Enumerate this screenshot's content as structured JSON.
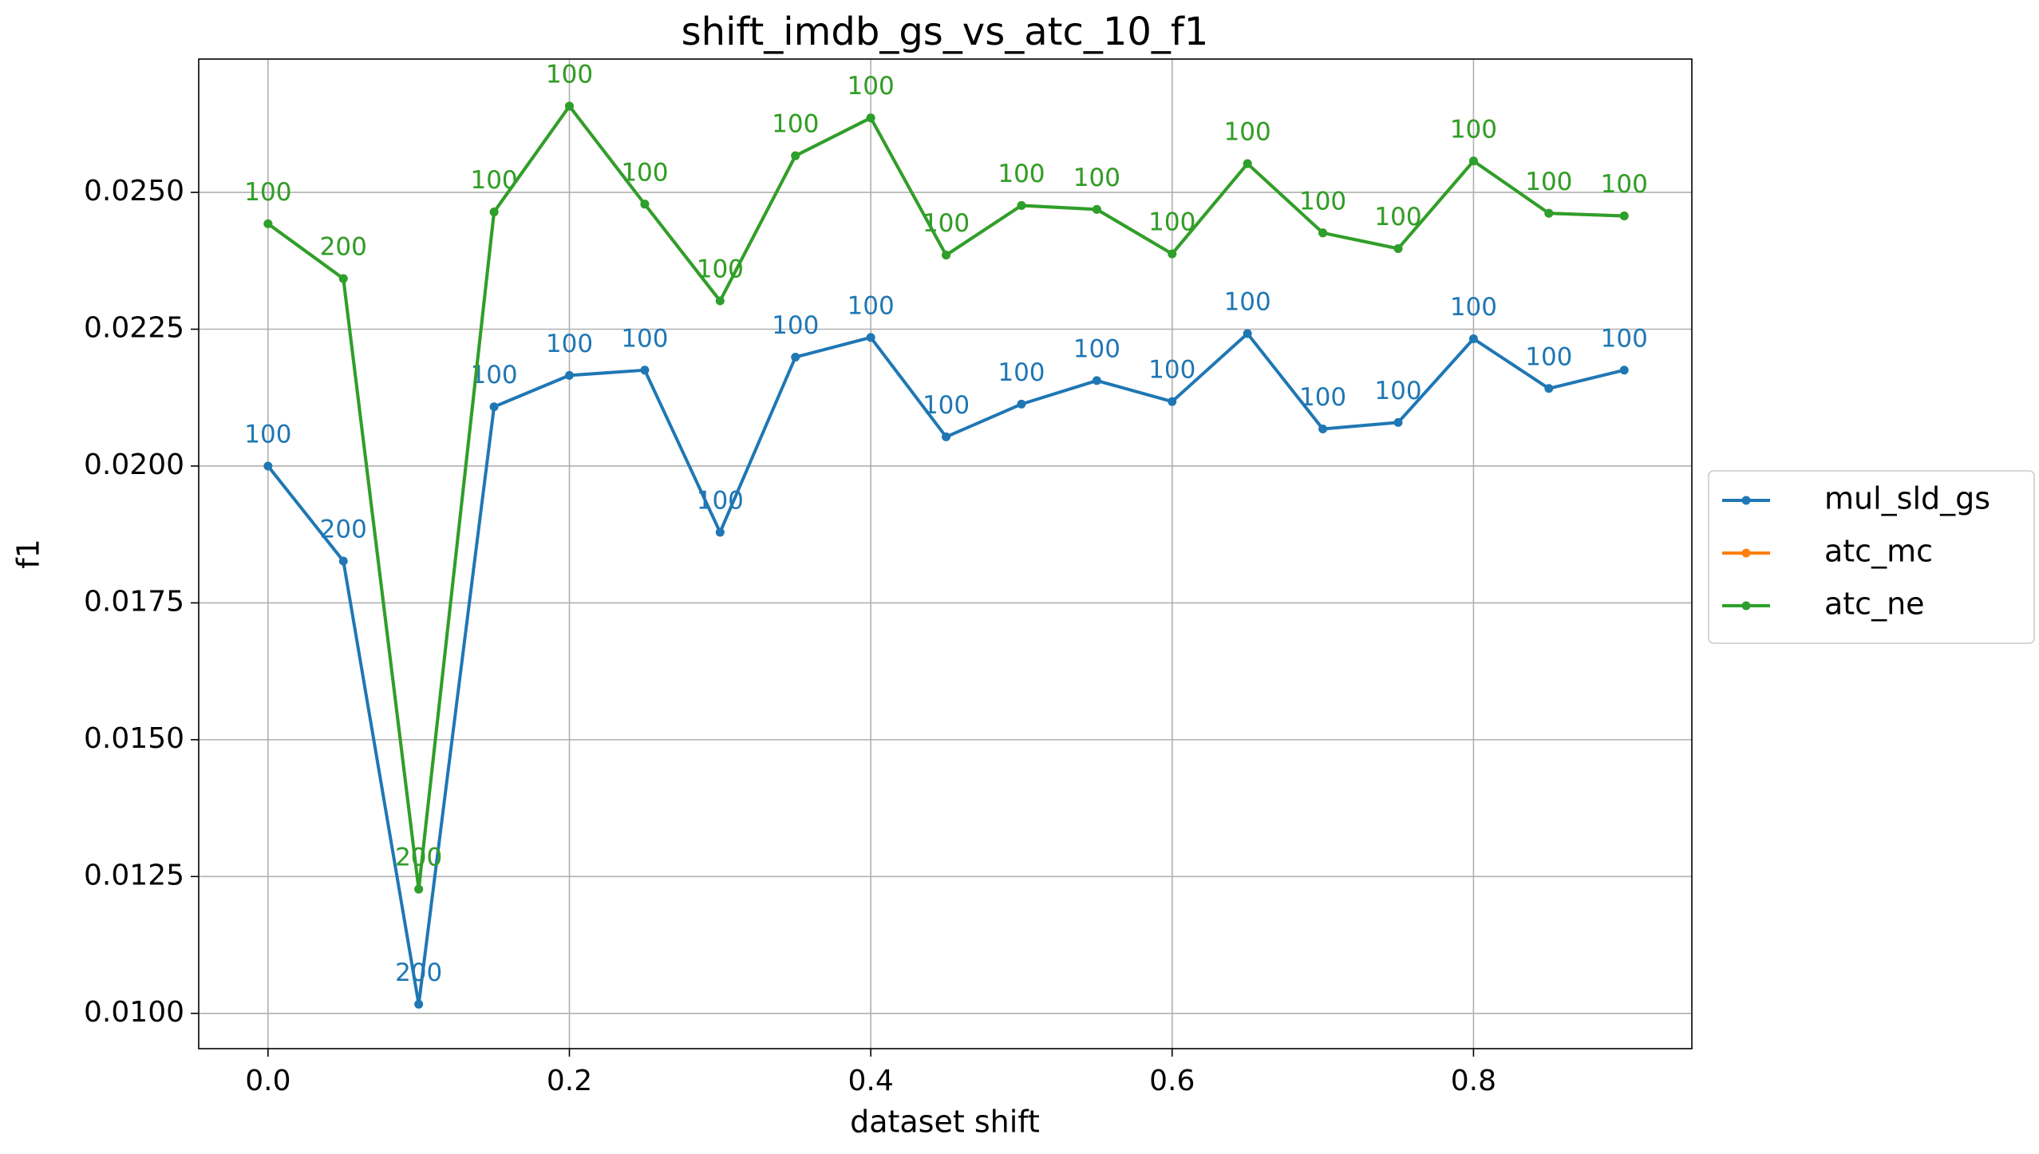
{
  "chart_data": {
    "type": "line",
    "title": "shift_imdb_gs_vs_atc_10_f1",
    "xlabel": "dataset shift",
    "ylabel": "f1",
    "x": [
      0.0,
      0.05,
      0.1,
      0.15,
      0.2,
      0.25,
      0.3,
      0.35,
      0.4,
      0.45,
      0.5,
      0.55,
      0.6,
      0.65,
      0.7,
      0.75,
      0.8,
      0.85,
      0.9
    ],
    "series": [
      {
        "name": "mul_sld_gs",
        "color": "#1f77b4",
        "values": [
          0.02,
          0.018264,
          0.010167,
          0.021083,
          0.021656,
          0.021752,
          0.01879,
          0.02199,
          0.022349,
          0.020533,
          0.021131,
          0.021561,
          0.021178,
          0.02242,
          0.020677,
          0.020796,
          0.022325,
          0.021417,
          0.021752
        ],
        "counts": [
          100,
          200,
          200,
          100,
          100,
          100,
          100,
          100,
          100,
          100,
          100,
          100,
          100,
          100,
          100,
          100,
          100,
          100,
          100
        ]
      },
      {
        "name": "atc_mc",
        "color": "#ff7f0e",
        "values": [
          0.024427,
          0.023424,
          0.012269,
          0.024642,
          0.026576,
          0.024785,
          0.023018,
          0.025669,
          0.026361,
          0.023854,
          0.024761,
          0.024689,
          0.023877,
          0.025525,
          0.02426,
          0.023973,
          0.025573,
          0.024618,
          0.02457
        ],
        "counts": [
          100,
          200,
          200,
          100,
          100,
          100,
          100,
          100,
          100,
          100,
          100,
          100,
          100,
          100,
          100,
          100,
          100,
          100,
          100
        ]
      },
      {
        "name": "atc_ne",
        "color": "#2ca02c",
        "values": [
          0.024427,
          0.023424,
          0.012269,
          0.024642,
          0.026576,
          0.024785,
          0.023018,
          0.025669,
          0.026361,
          0.023854,
          0.024761,
          0.024689,
          0.023877,
          0.025525,
          0.02426,
          0.023973,
          0.025573,
          0.024618,
          0.02457
        ],
        "counts": [
          100,
          200,
          200,
          100,
          100,
          100,
          100,
          100,
          100,
          100,
          100,
          100,
          100,
          100,
          100,
          100,
          100,
          100,
          100
        ]
      }
    ],
    "xlim": [
      -0.046,
      0.9449
    ],
    "ylim": [
      0.009355,
      0.027436
    ],
    "xticks": [
      {
        "value": 0,
        "label": "0.0"
      },
      0.2,
      0.4,
      0.6,
      0.8
    ],
    "yticks": [
      {
        "value": 0.01,
        "label": "0.0100"
      },
      {
        "value": 0.0125,
        "label": "0.0125"
      },
      {
        "value": 0.015,
        "label": "0.0150"
      },
      {
        "value": 0.0175,
        "label": "0.0175"
      },
      {
        "value": 0.02,
        "label": "0.0200"
      },
      {
        "value": 0.0225,
        "label": "0.0225"
      },
      {
        "value": 0.025,
        "label": "0.0250"
      }
    ],
    "grid": true,
    "legend": "outside right"
  }
}
